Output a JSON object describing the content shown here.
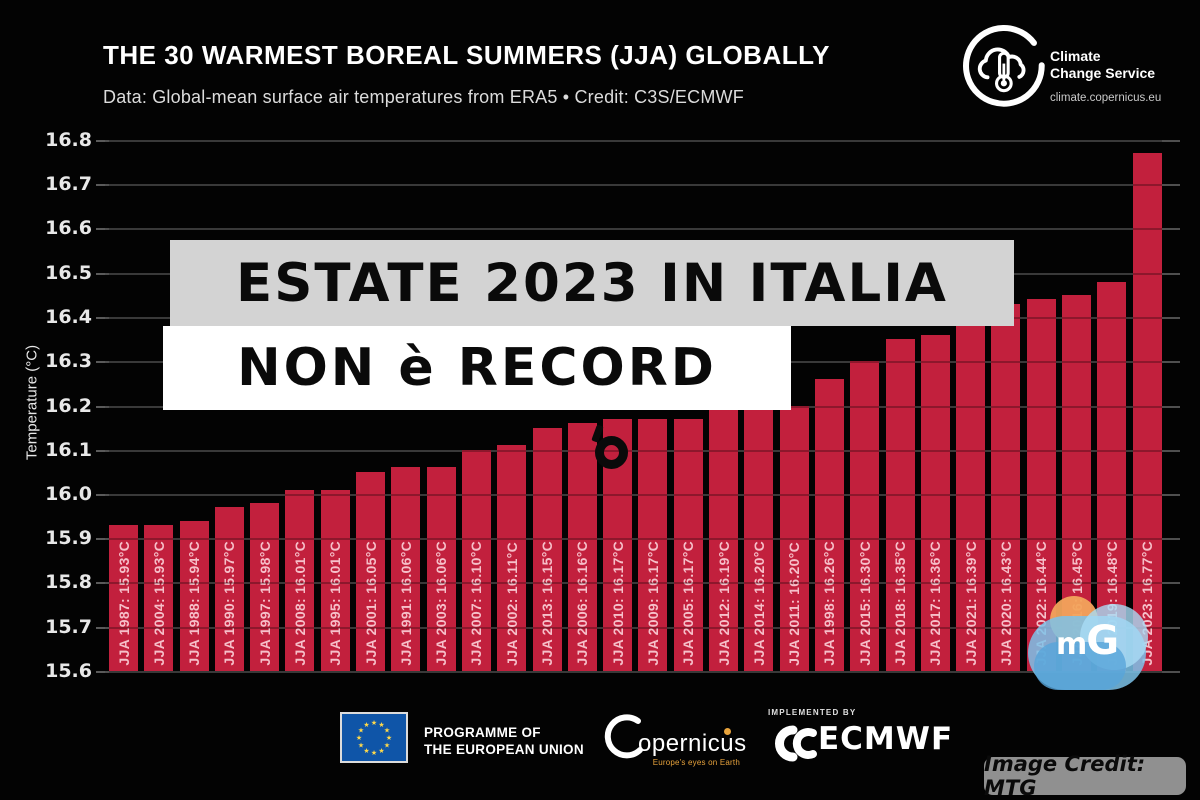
{
  "header": {
    "title": "THE 30 WARMEST BOREAL SUMMERS (JJA) GLOBALLY",
    "subtitle": "Data: Global-mean surface air temperatures from ERA5 • Credit: C3S/ECMWF"
  },
  "c3s_logo": {
    "name": "Climate\nChange Service",
    "url": "climate.copernicus.eu"
  },
  "overlay": {
    "line1": "ESTATE 2023 IN ITALIA",
    "line2": "NON è RECORD"
  },
  "chart_data": {
    "type": "bar",
    "title": "THE 30 WARMEST BOREAL SUMMERS (JJA) GLOBALLY",
    "xlabel": "",
    "ylabel": "Temperature (°C)",
    "ylim": [
      15.6,
      16.8
    ],
    "yticks": [
      15.6,
      15.7,
      15.8,
      15.9,
      16.0,
      16.1,
      16.2,
      16.3,
      16.4,
      16.5,
      16.6,
      16.7,
      16.8
    ],
    "grid": true,
    "legend": "none",
    "bar_color": "#c2203d",
    "bar_label_color": "#f6bfc9",
    "background_color": "#030303",
    "categories": [
      "JJA 1987",
      "JJA 2004",
      "JJA 1988",
      "JJA 1990",
      "JJA 1997",
      "JJA 2008",
      "JJA 1995",
      "JJA 2001",
      "JJA 1991",
      "JJA 2003",
      "JJA 2007",
      "JJA 2002",
      "JJA 2013",
      "JJA 2006",
      "JJA 2010",
      "JJA 2009",
      "JJA 2005",
      "JJA 2012",
      "JJA 2014",
      "JJA 2011",
      "JJA 1998",
      "JJA 2015",
      "JJA 2018",
      "JJA 2017",
      "JJA 2021",
      "JJA 2020",
      "JJA 2022",
      "JJA 2016",
      "JJA 2019",
      "JJA 2023"
    ],
    "values": [
      15.93,
      15.93,
      15.94,
      15.97,
      15.98,
      16.01,
      16.01,
      16.05,
      16.06,
      16.06,
      16.1,
      16.11,
      16.15,
      16.16,
      16.17,
      16.17,
      16.17,
      16.19,
      16.2,
      16.2,
      16.26,
      16.3,
      16.35,
      16.36,
      16.39,
      16.43,
      16.44,
      16.45,
      16.48,
      16.77
    ],
    "label_suffix": "°C"
  },
  "footer": {
    "programme": "PROGRAMME OF\nTHE EUROPEAN UNION",
    "copernicus_wordmark": "opernicus",
    "copernicus_tagline": "Europe's eyes on Earth",
    "implemented_by": "IMPLEMENTED BY",
    "ecmwf": "ECMWF"
  },
  "watermark": {
    "text_m": "m",
    "text_g": "G"
  },
  "credit": {
    "text": "Image Credit: MTG"
  }
}
